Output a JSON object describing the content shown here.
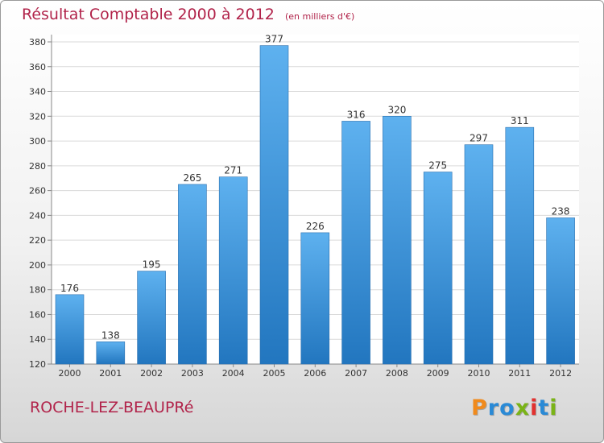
{
  "header": {
    "title": "Résultat Comptable 2000 à 2012",
    "unit": "(en milliers d'€)"
  },
  "footer": {
    "commune": "ROCHE-LEZ-BEAUPRé",
    "logo_letters": [
      "P",
      "r",
      "o",
      "x",
      "i",
      "t",
      "i"
    ],
    "logo_colors": [
      "#f08a1c",
      "#2a8ad6",
      "#2a8ad6",
      "#7ab317",
      "#e2312f",
      "#2a8ad6",
      "#7ab317"
    ]
  },
  "chart_data": {
    "type": "bar",
    "title": "Résultat Comptable 2000 à 2012",
    "categories": [
      "2000",
      "2001",
      "2002",
      "2003",
      "2004",
      "2005",
      "2006",
      "2007",
      "2008",
      "2009",
      "2010",
      "2011",
      "2012"
    ],
    "values": [
      176,
      138,
      195,
      265,
      271,
      377,
      226,
      316,
      320,
      275,
      297,
      311,
      238
    ],
    "ylim": [
      120,
      380
    ],
    "yticks": [
      "120",
      "140",
      "160",
      "180",
      "200",
      "220",
      "240",
      "260",
      "280",
      "300",
      "320",
      "340",
      "360",
      "380"
    ],
    "grid": true,
    "bar_color": "#3a8fd8"
  }
}
